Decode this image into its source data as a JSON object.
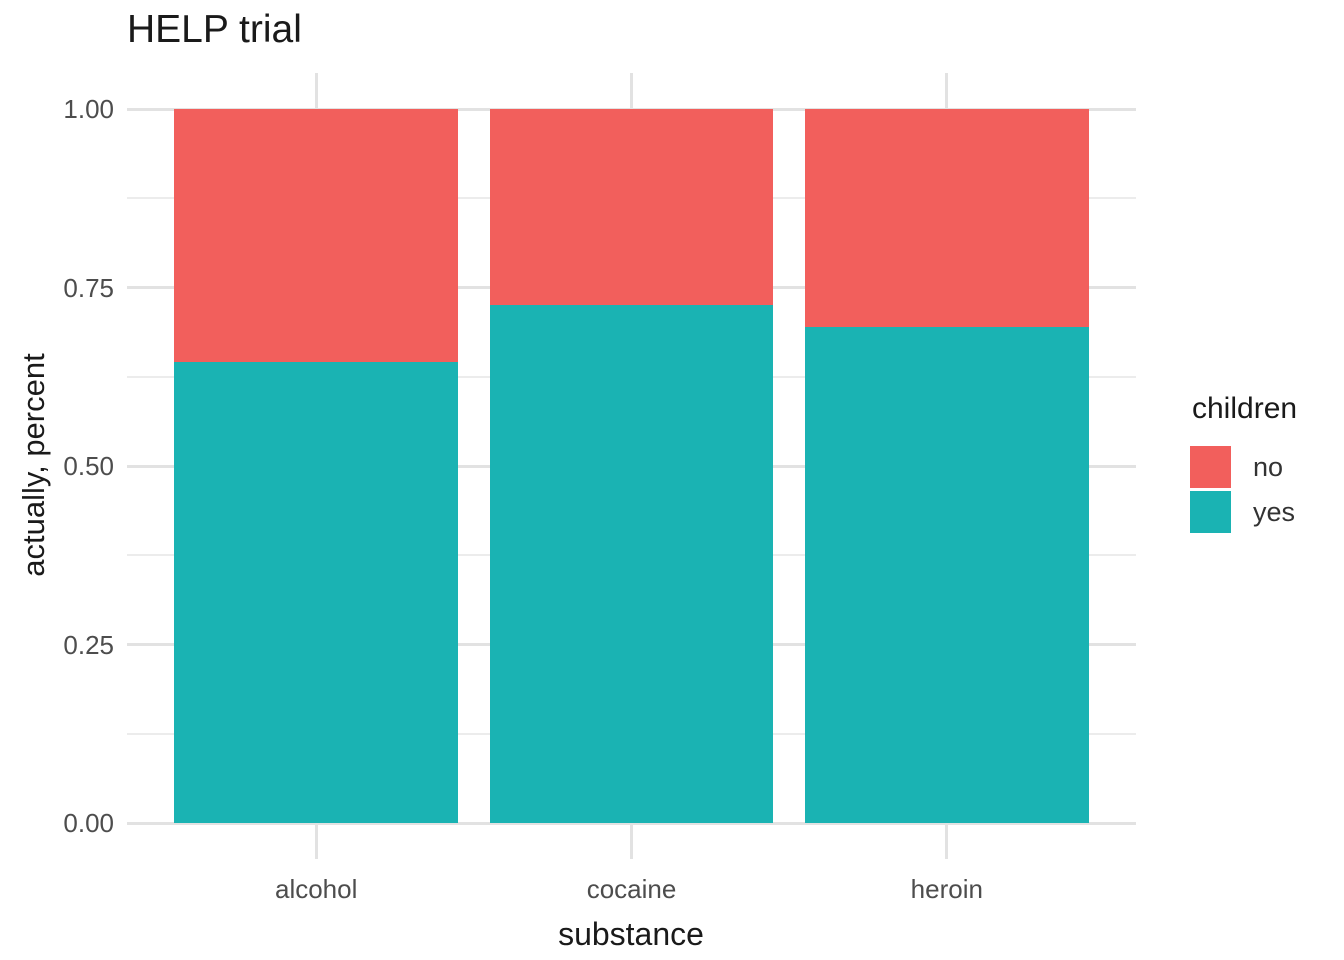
{
  "chart_data": {
    "type": "bar",
    "stacked": true,
    "orientation": "vertical",
    "title": "HELP trial",
    "xlabel": "substance",
    "ylabel": "actually, percent",
    "categories": [
      "alcohol",
      "cocaine",
      "heroin"
    ],
    "series": [
      {
        "name": "no",
        "color": "#F25F5C",
        "values": [
          0.355,
          0.274,
          0.306
        ]
      },
      {
        "name": "yes",
        "color": "#1AB3B3",
        "values": [
          0.645,
          0.726,
          0.694
        ]
      }
    ],
    "stack_order_bottom_to_top": [
      "yes",
      "no"
    ],
    "ylim": [
      0,
      1
    ],
    "yticks": [
      "0.00",
      "0.25",
      "0.50",
      "0.75",
      "1.00"
    ],
    "ytick_values": [
      0,
      0.25,
      0.5,
      0.75,
      1.0
    ],
    "minor_gridline_values": [
      0.125,
      0.375,
      0.625,
      0.875
    ],
    "grid": true,
    "legend": {
      "title": "children",
      "position": "right",
      "entries": [
        "no",
        "yes"
      ]
    }
  },
  "colors": {
    "background": "#FFFFFF",
    "grid_major": "#E2E2E2",
    "grid_minor": "#ECECEC",
    "axis_text": "#4D4D4D",
    "title_text": "#1A1A1A",
    "fill_no": "#F25F5C",
    "fill_yes": "#1AB3B3"
  }
}
